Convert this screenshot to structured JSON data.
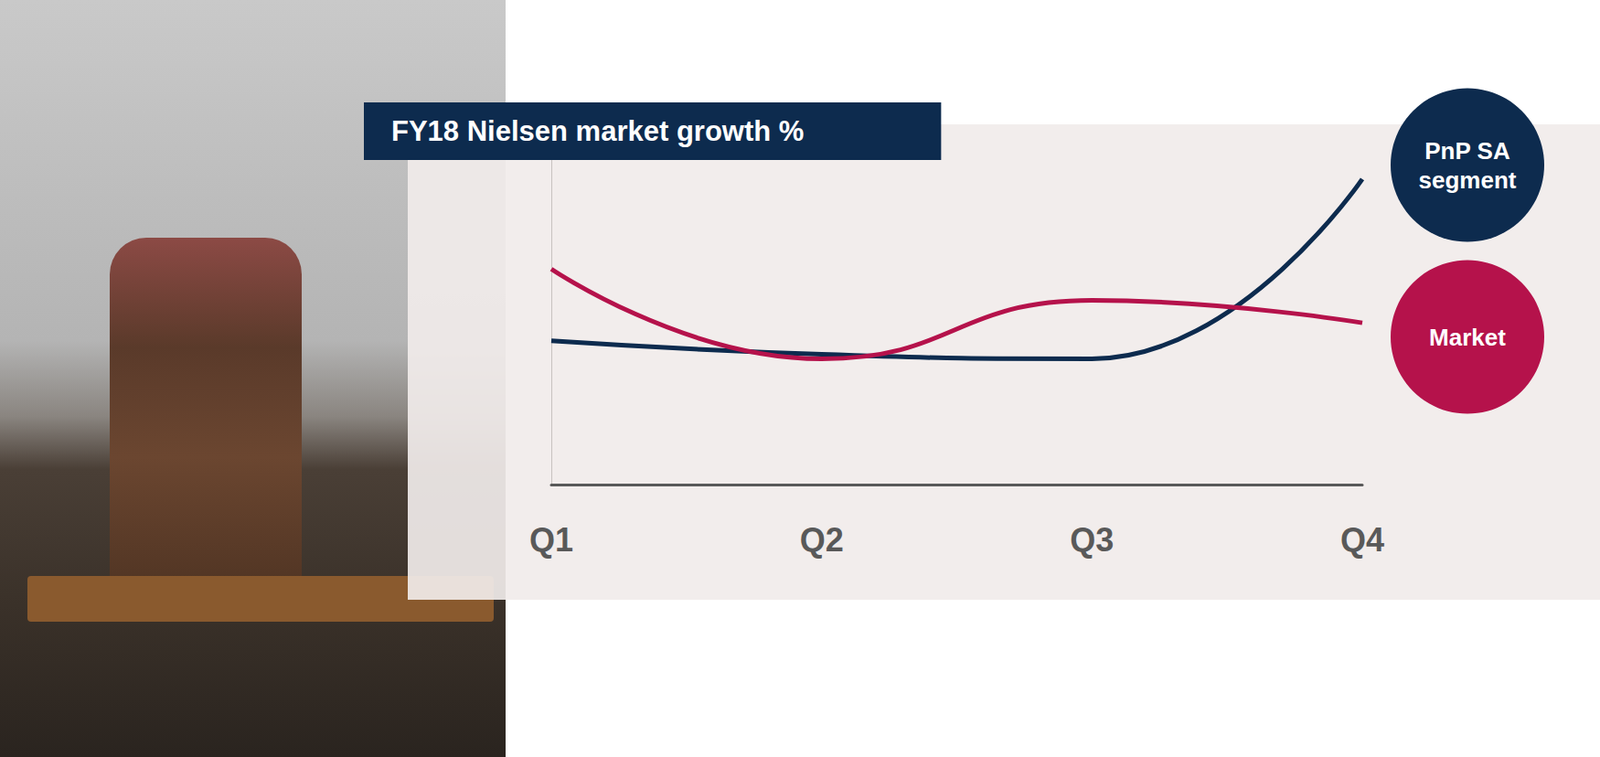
{
  "chart_data": {
    "type": "line",
    "title": "FY18 Nielsen market growth %",
    "categories": [
      "Q1",
      "Q2",
      "Q3",
      "Q4"
    ],
    "series": [
      {
        "name": "PnP SA segment",
        "color": "#0d2b4e",
        "values": [
          3.2,
          2.9,
          2.8,
          6.8
        ]
      },
      {
        "name": "Market",
        "color": "#b5124b",
        "values": [
          4.8,
          2.8,
          4.1,
          3.6
        ]
      }
    ],
    "ylim": [
      0,
      8
    ],
    "tick_labels": "x",
    "grid": false,
    "line_style": "solid"
  }
}
